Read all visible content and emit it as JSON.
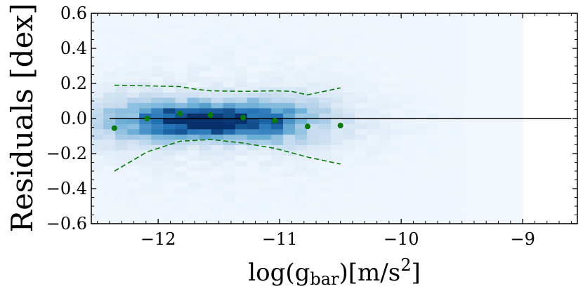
{
  "chart_data": {
    "type": "scatter",
    "title": "",
    "xlabel": {
      "main": "log(g",
      "subscript": "bar",
      "suffix": ")[m/s",
      "superscript": "2",
      "close": "]"
    },
    "ylabel": "Residuals [dex]",
    "xlim": [
      -12.55,
      -8.55
    ],
    "ylim": [
      -0.6,
      0.6
    ],
    "x_ticks": [
      -12,
      -11,
      -10,
      -9
    ],
    "x_tick_labels": [
      "−12",
      "−11",
      "−10",
      "−9"
    ],
    "y_ticks": [
      -0.6,
      -0.4,
      -0.2,
      0.0,
      0.2,
      0.4,
      0.6
    ],
    "y_tick_labels": [
      "−0.6",
      "−0.4",
      "−0.2",
      "0.0",
      "0.2",
      "0.4",
      "0.6"
    ],
    "reference_line": {
      "y": 0.0,
      "x_start": -12.4,
      "x_end": -8.6,
      "color": "#000000"
    },
    "median_points": {
      "color": "#0a7a0a",
      "x": [
        -12.36,
        -12.09,
        -11.82,
        -11.57,
        -11.3,
        -11.04,
        -10.77,
        -10.5
      ],
      "y": [
        -0.055,
        0.0,
        0.028,
        0.02,
        0.005,
        -0.012,
        -0.045,
        -0.04
      ]
    },
    "upper_band": {
      "color": "#0a7a0a",
      "x": [
        -12.36,
        -12.2,
        -12.0,
        -11.82,
        -11.7,
        -11.57,
        -11.3,
        -11.04,
        -10.9,
        -10.77,
        -10.5
      ],
      "y": [
        0.19,
        0.188,
        0.185,
        0.182,
        0.168,
        0.158,
        0.155,
        0.158,
        0.155,
        0.135,
        0.175
      ]
    },
    "lower_band": {
      "color": "#0a7a0a",
      "x": [
        -12.36,
        -12.09,
        -11.82,
        -11.7,
        -11.57,
        -11.43,
        -11.3,
        -11.04,
        -10.77,
        -10.5
      ],
      "y": [
        -0.3,
        -0.19,
        -0.13,
        -0.125,
        -0.12,
        -0.13,
        -0.14,
        -0.17,
        -0.22,
        -0.26
      ]
    },
    "histogram": {
      "colormap": [
        "#f7fbff",
        "#c6dbef",
        "#6baed6",
        "#2171b5",
        "#08306b"
      ],
      "x_range": [
        -12.55,
        -9.0
      ],
      "y_range": [
        -0.6,
        0.6
      ],
      "bins_x": 36,
      "bins_y": 40,
      "peak_x": -11.55,
      "peak_y": -0.01,
      "spread_x": 0.5,
      "spread_y": 0.055,
      "background_level": 0.035
    }
  }
}
